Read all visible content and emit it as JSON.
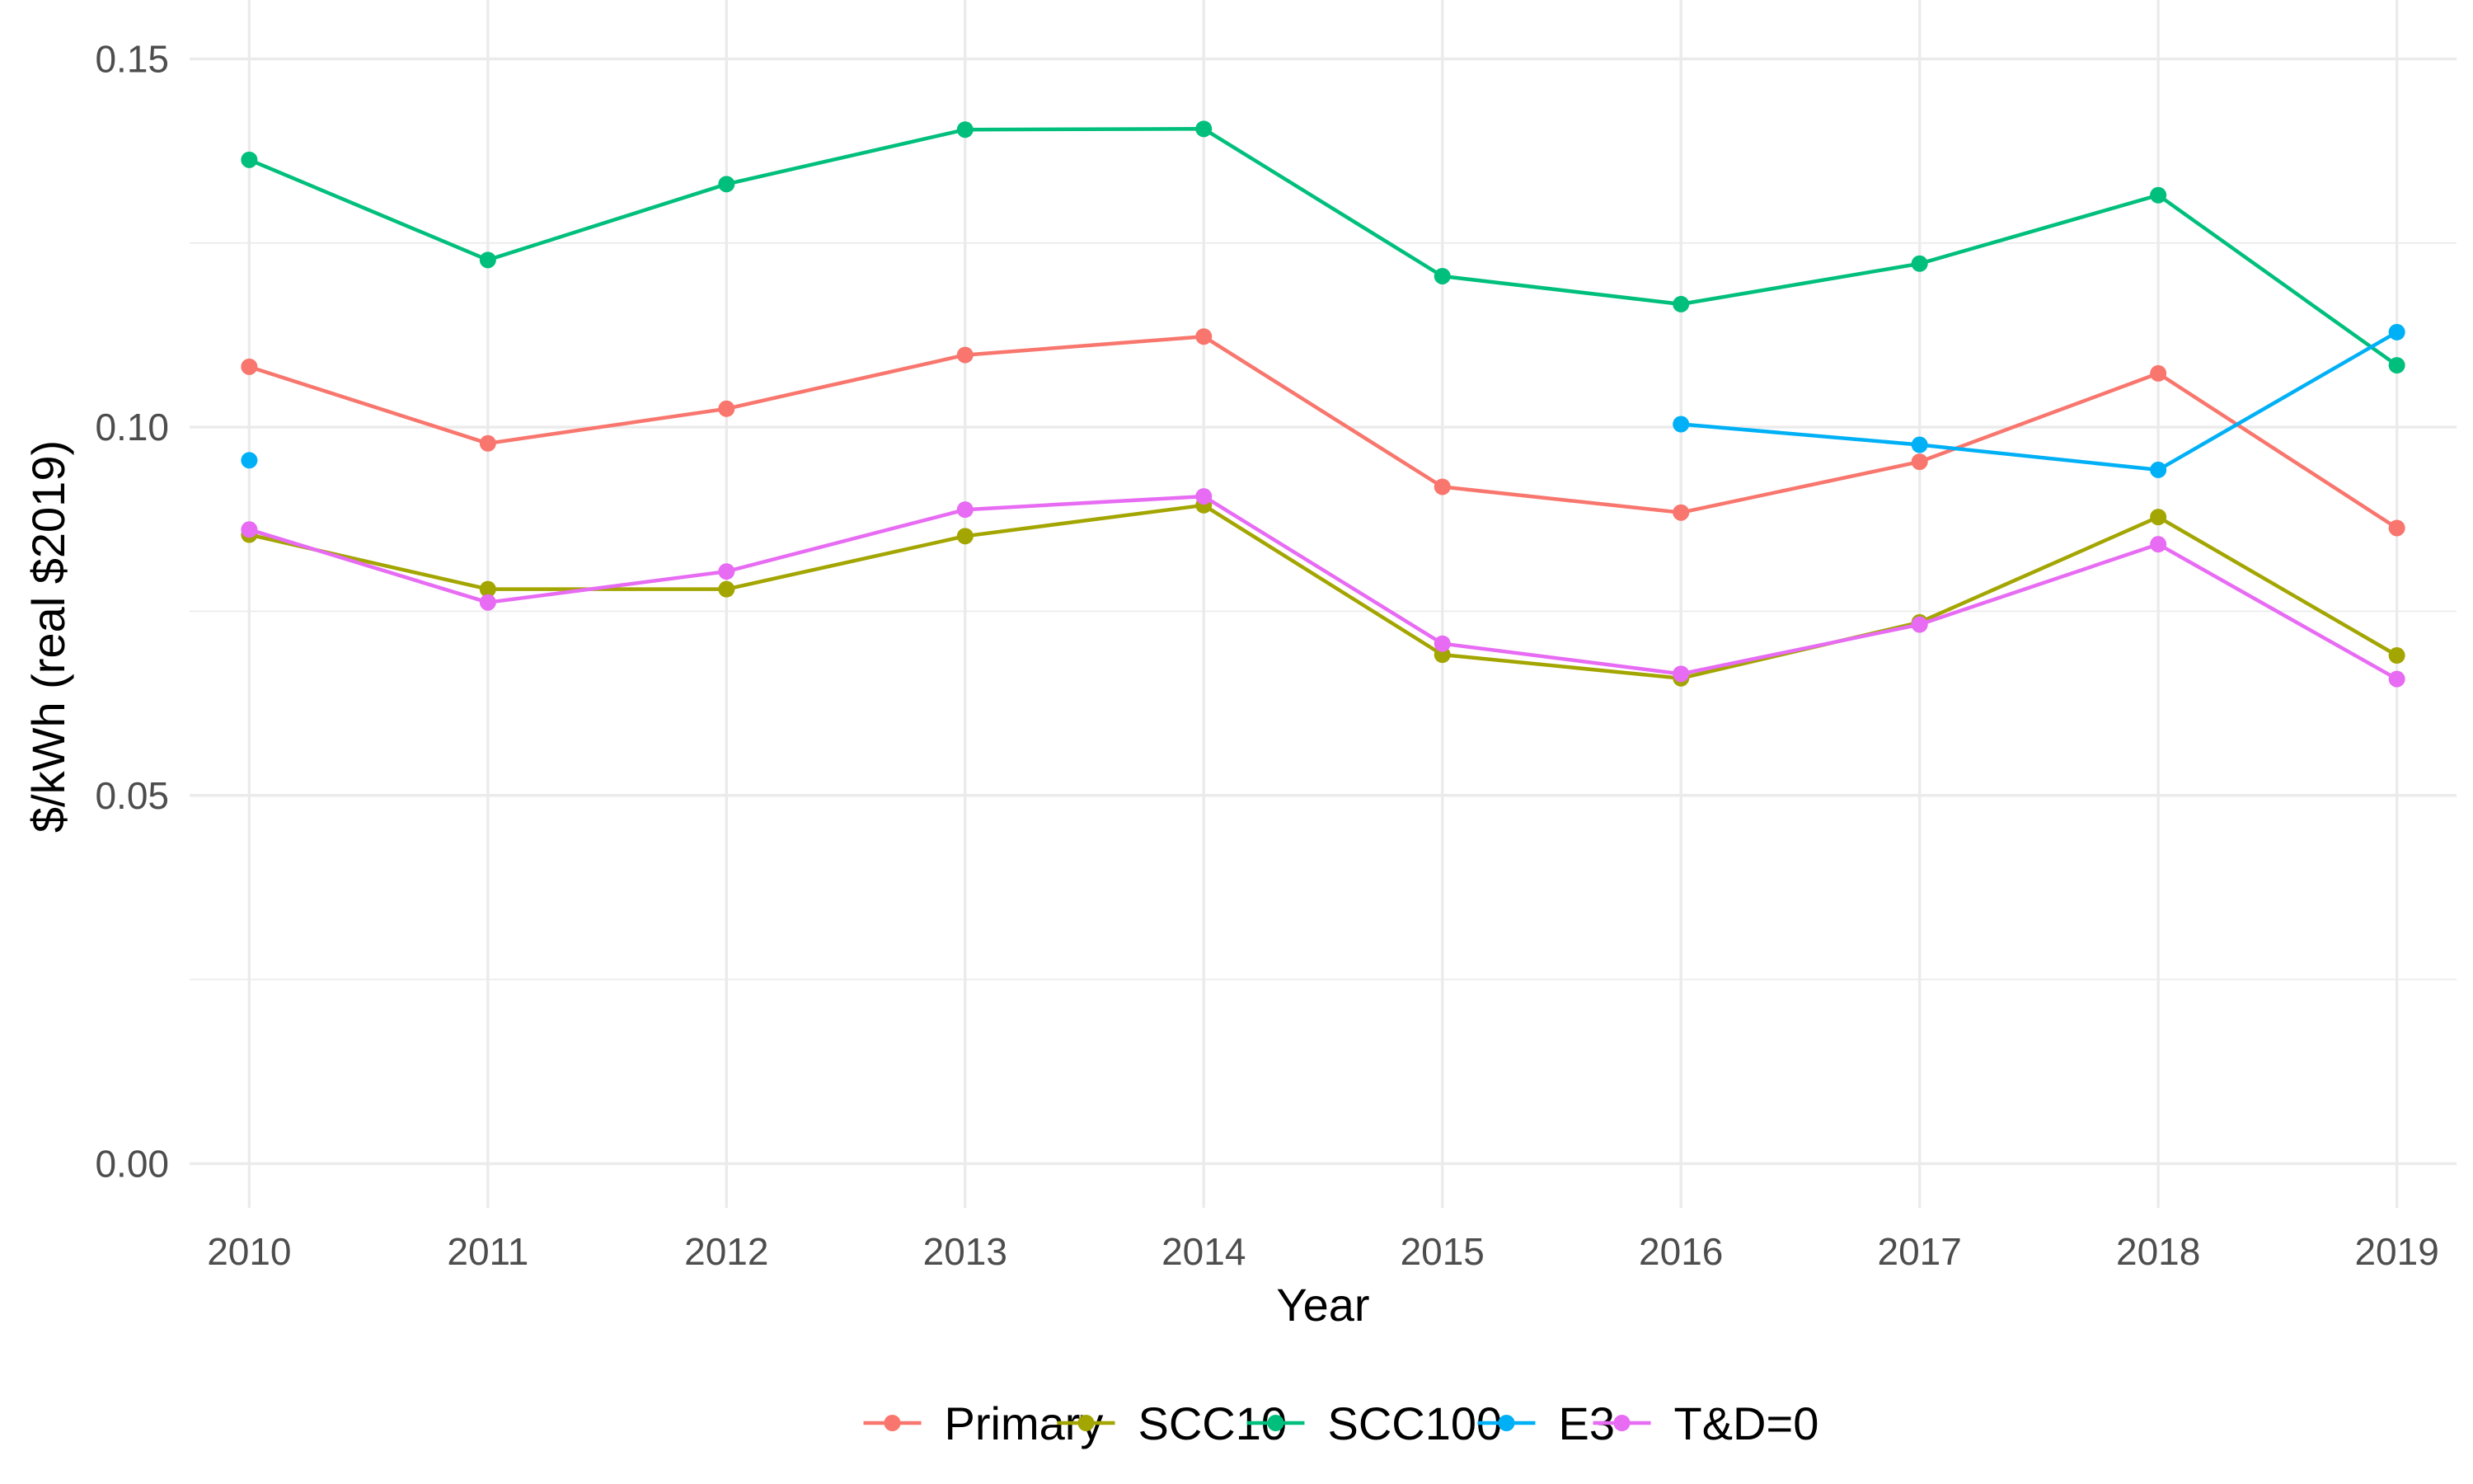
{
  "chart_data": {
    "type": "line",
    "xlabel": "Year",
    "ylabel": "$/kWh (real $2019)",
    "x": [
      2010,
      2011,
      2012,
      2013,
      2014,
      2015,
      2016,
      2017,
      2018,
      2019
    ],
    "xlim": [
      2009.75,
      2019.25
    ],
    "ylim": [
      -0.006,
      0.158
    ],
    "yticks": [
      0.0,
      0.05,
      0.1,
      0.15
    ],
    "ytick_labels": [
      "0.00",
      "0.05",
      "0.10",
      "0.15"
    ],
    "yticks_minor": [
      0.025,
      0.075,
      0.125
    ],
    "xtick_labels": [
      "2010",
      "2011",
      "2012",
      "2013",
      "2014",
      "2015",
      "2016",
      "2017",
      "2018",
      "2019"
    ],
    "grid": true,
    "legend_position": "bottom",
    "series": [
      {
        "name": "Primary",
        "color": "#F8766D",
        "values": [
          0.1082,
          0.0978,
          0.1025,
          0.1098,
          0.1123,
          0.0919,
          0.0884,
          0.0953,
          0.1073,
          0.0863
        ]
      },
      {
        "name": "SCC10",
        "color": "#A3A500",
        "values": [
          0.0854,
          0.078,
          0.078,
          0.0852,
          0.0894,
          0.0691,
          0.0659,
          0.0735,
          0.0878,
          0.069
        ]
      },
      {
        "name": "SCC100",
        "color": "#00BF7D",
        "values": [
          0.1363,
          0.1227,
          0.133,
          0.1404,
          0.1405,
          0.1205,
          0.1167,
          0.1222,
          0.1315,
          0.1084
        ]
      },
      {
        "name": "E3",
        "color": "#00B0F6",
        "values": [
          0.0955,
          null,
          null,
          null,
          null,
          null,
          0.1004,
          0.0976,
          0.0942,
          0.1129
        ]
      },
      {
        "name": "T&D=0",
        "color": "#E76BF3",
        "values": [
          0.0861,
          0.0762,
          0.0804,
          0.0888,
          0.0906,
          0.0706,
          0.0665,
          0.0732,
          0.0841,
          0.0658
        ]
      }
    ]
  }
}
